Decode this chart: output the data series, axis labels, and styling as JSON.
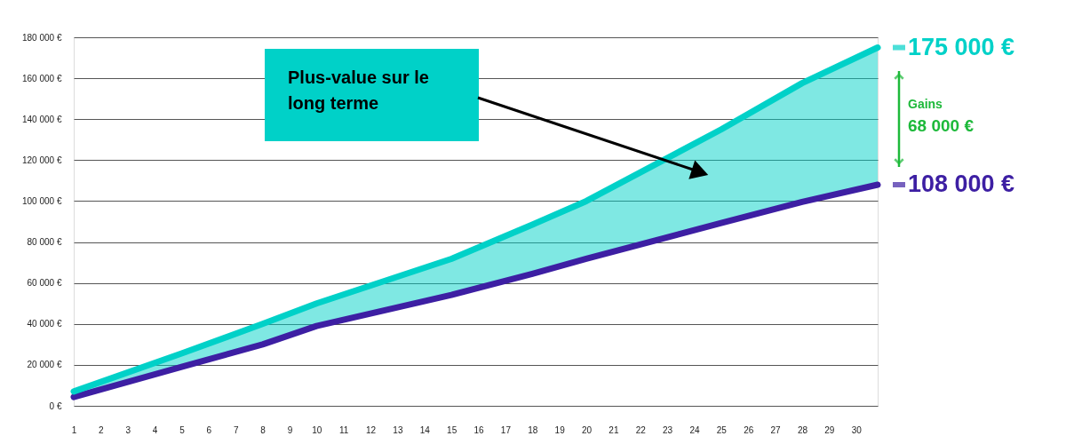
{
  "chart_data": {
    "type": "line",
    "x": [
      1,
      5,
      8,
      10,
      15,
      18,
      20,
      25,
      28,
      30.8
    ],
    "series": [
      {
        "color": "#3d1fa3",
        "values": [
          4300,
          19000,
          30000,
          39000,
          54200,
          64500,
          71800,
          89300,
          99600,
          108000
        ],
        "value_labels": [
          null,
          null,
          null,
          null,
          null,
          null,
          null,
          null,
          null,
          "108 000 €"
        ]
      },
      {
        "color": "#00d1c8",
        "values": [
          7000,
          25600,
          40000,
          50000,
          71800,
          88500,
          100000,
          135000,
          157600,
          175000
        ],
        "value_labels": [
          null,
          null,
          null,
          null,
          null,
          null,
          null,
          null,
          null,
          "175 000 €"
        ],
        "lower": [
          4300,
          19000,
          30000,
          39000,
          54200,
          64500,
          71800,
          89300,
          99600,
          108000
        ],
        "upper": [
          7000,
          25600,
          40000,
          50000,
          71800,
          88500,
          100000,
          135000,
          157600,
          175000
        ]
      }
    ],
    "xlim": [
      1,
      30.8
    ],
    "xticks": [
      1,
      2,
      3,
      4,
      5,
      6,
      7,
      8,
      9,
      10,
      11,
      12,
      13,
      14,
      15,
      16,
      17,
      18,
      19,
      20,
      21,
      22,
      23,
      24,
      25,
      26,
      27,
      28,
      29,
      30
    ],
    "ylim": [
      0,
      180000
    ],
    "yticks": [
      {
        "value": 0,
        "label": "0 €"
      },
      {
        "value": 20000,
        "label": "20 000 €"
      },
      {
        "value": 40000,
        "label": "40 000 €"
      },
      {
        "value": 60000,
        "label": "60 000 €"
      },
      {
        "value": 80000,
        "label": "80 000 €"
      },
      {
        "value": 100000,
        "label": "100 000 €"
      },
      {
        "value": 120000,
        "label": "120 000 €"
      },
      {
        "value": 140000,
        "label": "140 000 €"
      },
      {
        "value": 160000,
        "label": "160 000 €"
      },
      {
        "value": 180000,
        "label": "180 000 €"
      }
    ],
    "grid": "y",
    "marker": "none",
    "line_style": "solid",
    "annotations": [
      "Plus-value sur le\nlong terme",
      "Gains\n68 000 €"
    ]
  }
}
